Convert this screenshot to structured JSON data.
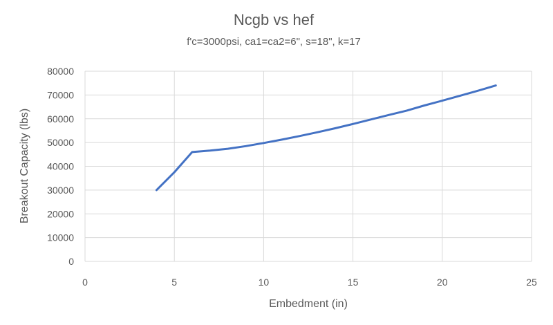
{
  "chart_data": {
    "type": "line",
    "title": "Ncgb vs hef",
    "subtitle": "f'c=3000psi, ca1=ca2=6\", s=18\", k=17",
    "xlabel": "Embedment (in)",
    "ylabel": "Breakout Capacity (lbs)",
    "xlim": [
      0,
      25
    ],
    "ylim": [
      0,
      80000
    ],
    "xticks": [
      0,
      5,
      10,
      15,
      20,
      25
    ],
    "yticks": [
      0,
      10000,
      20000,
      30000,
      40000,
      50000,
      60000,
      70000,
      80000
    ],
    "xtick_labels": [
      "0",
      "5",
      "10",
      "15",
      "20",
      "25"
    ],
    "ytick_labels": [
      "0",
      "10000",
      "20000",
      "30000",
      "40000",
      "50000",
      "60000",
      "70000",
      "80000"
    ],
    "grid": true,
    "legend": "none",
    "series": [
      {
        "color": "#4472c4",
        "x": [
          4,
          5,
          6,
          7,
          8,
          9,
          10,
          11,
          12,
          13,
          14,
          15,
          16,
          17,
          18,
          19,
          20,
          21,
          22,
          23
        ],
        "y": [
          30000,
          37500,
          46000,
          46600,
          47400,
          48500,
          49800,
          51200,
          52700,
          54300,
          56000,
          57800,
          59700,
          61600,
          63400,
          65600,
          67600,
          69700,
          71800,
          74000
        ]
      }
    ]
  }
}
